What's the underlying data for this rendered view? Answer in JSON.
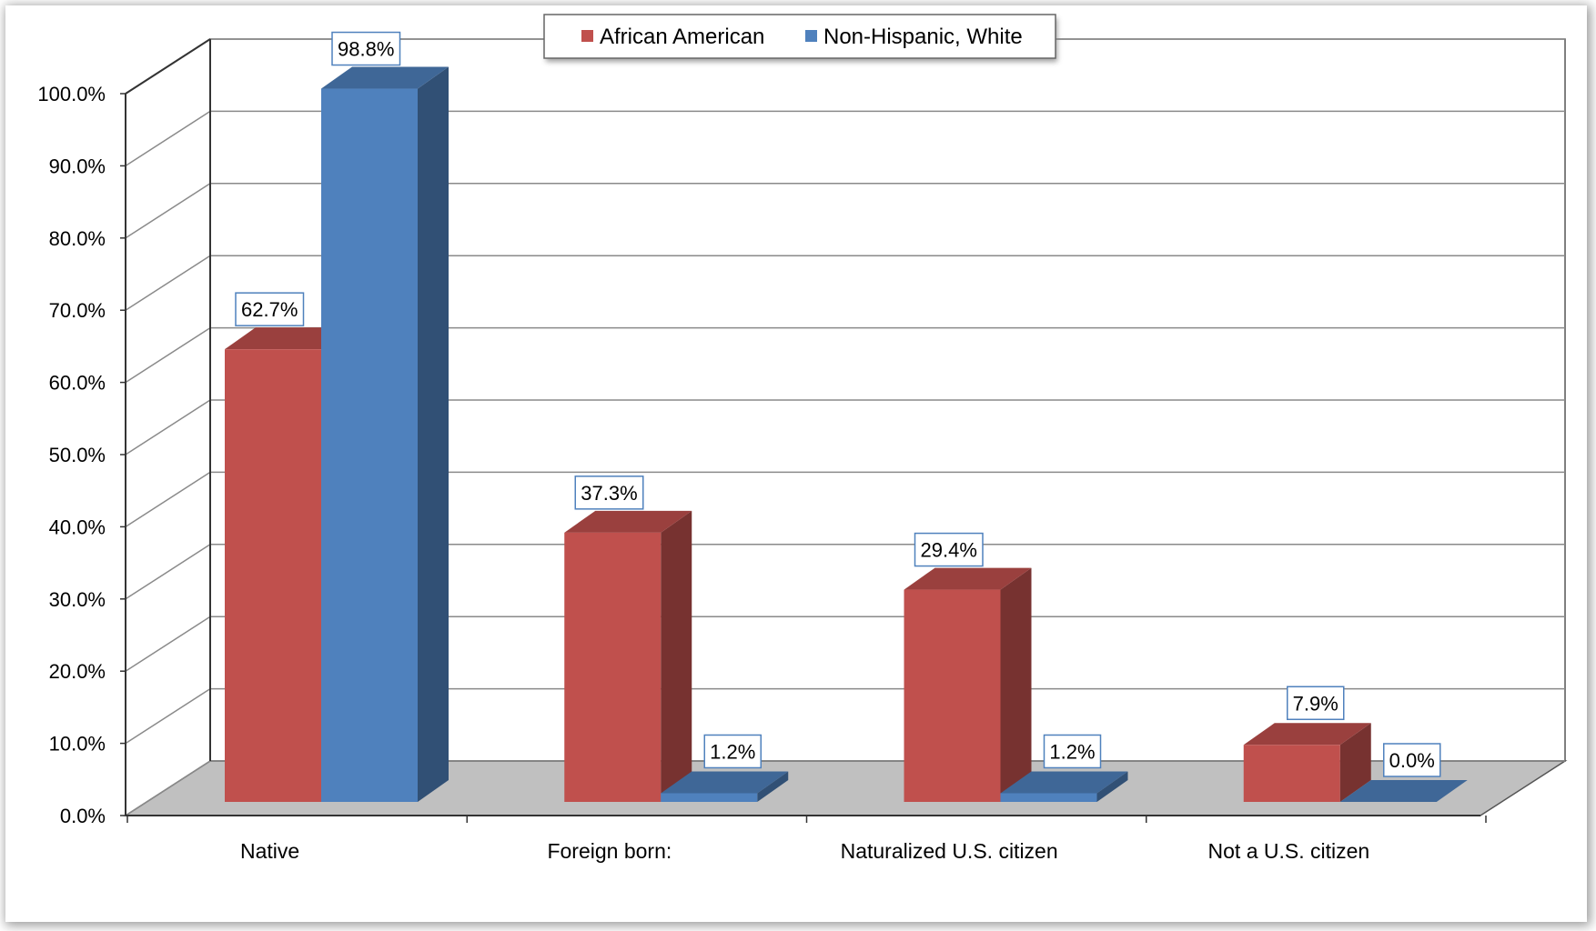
{
  "chart_data": {
    "type": "bar",
    "title": "",
    "xlabel": "",
    "ylabel": "",
    "categories": [
      "Native",
      "Foreign born:",
      "Naturalized U.S. citizen",
      "Not a U.S. citizen"
    ],
    "series": [
      {
        "name": "African American",
        "color": "#C0504D",
        "values": [
          62.7,
          37.3,
          29.4,
          7.9
        ],
        "labels": [
          "62.7%",
          "37.3%",
          "29.4%",
          "7.9%"
        ]
      },
      {
        "name": "Non-Hispanic, White",
        "color": "#4F81BD",
        "values": [
          98.8,
          1.2,
          1.2,
          0.0
        ],
        "labels": [
          "98.8%",
          "1.2%",
          "1.2%",
          "0.0%"
        ]
      }
    ],
    "ylim": [
      0,
      100
    ],
    "yticks": [
      "0.0%",
      "10.0%",
      "20.0%",
      "30.0%",
      "40.0%",
      "50.0%",
      "60.0%",
      "70.0%",
      "80.0%",
      "90.0%",
      "100.0%"
    ],
    "style": "3d-clustered-column",
    "grid": true,
    "legend_position": "top"
  }
}
